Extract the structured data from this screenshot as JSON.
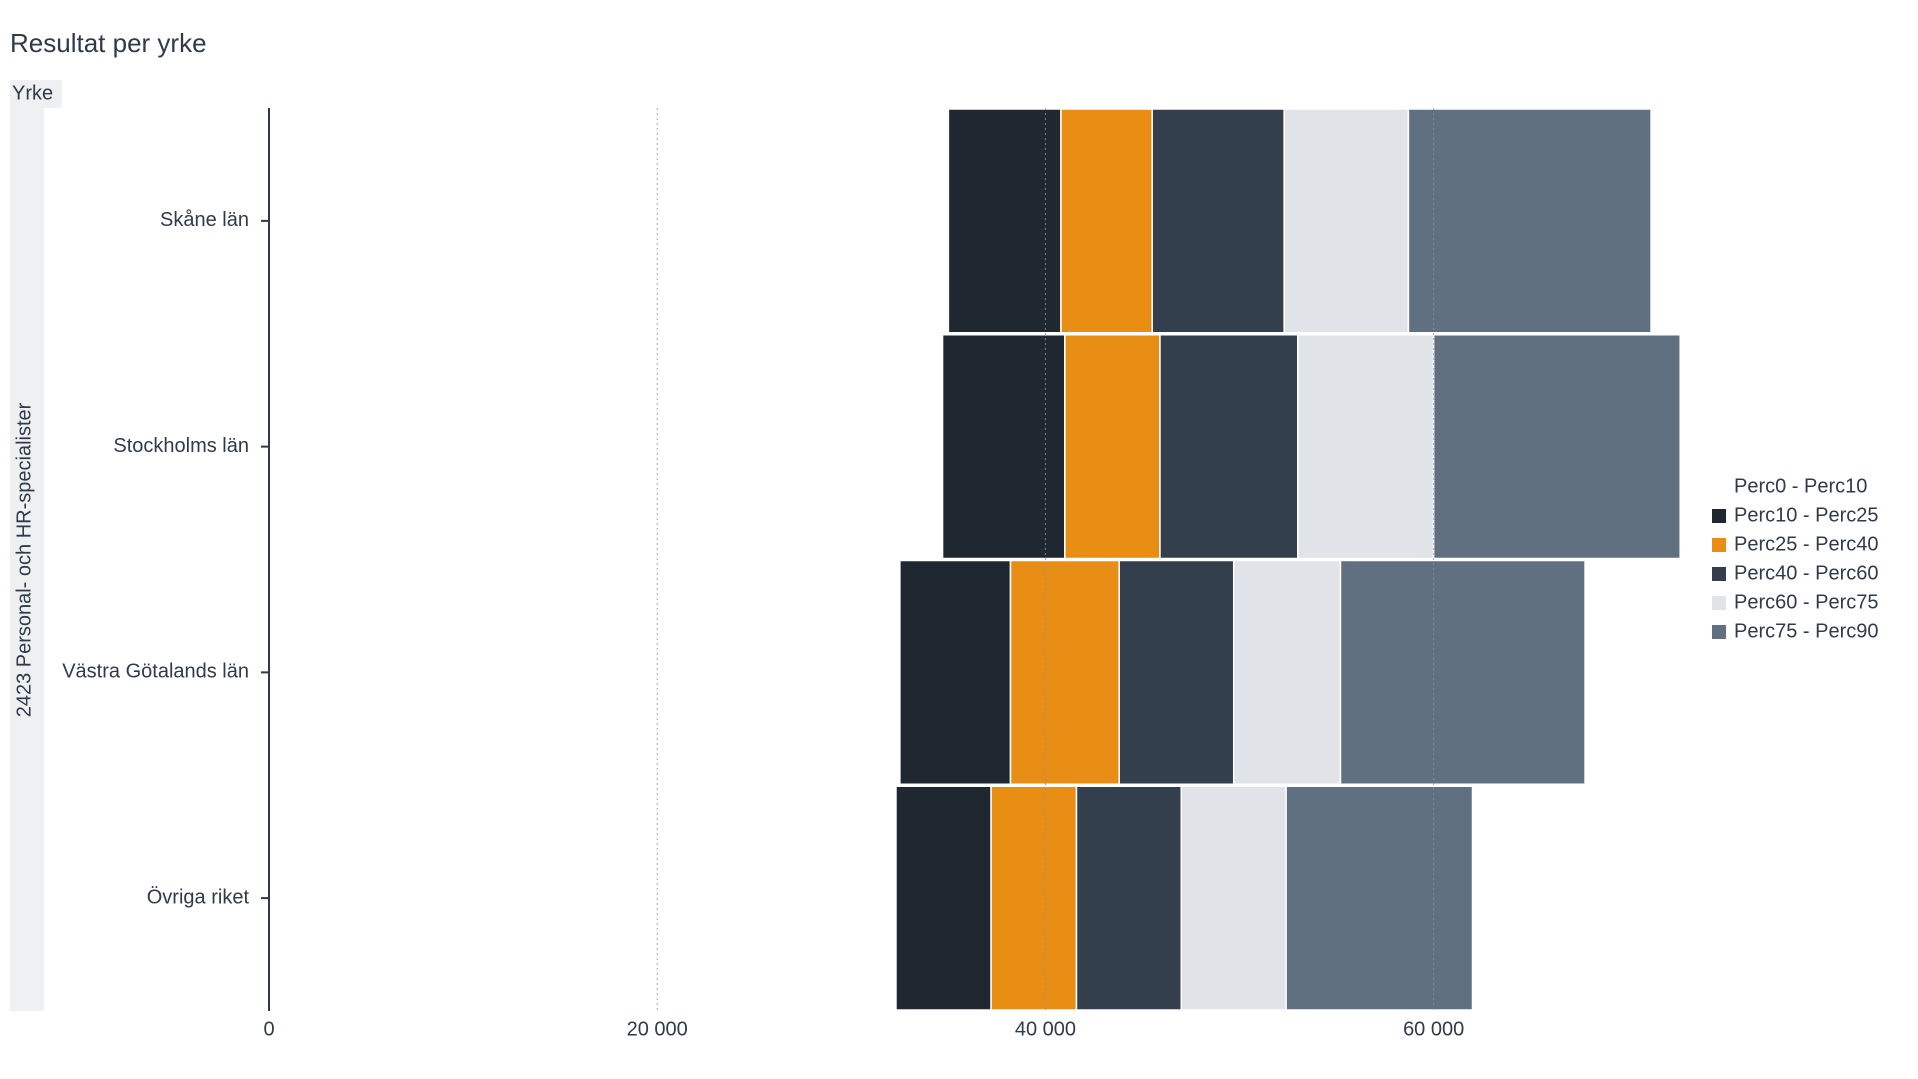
{
  "chart_data": {
    "type": "stacked_bar",
    "orientation": "horizontal",
    "title": "Resultat per yrke",
    "y_axis_title": "Yrke",
    "group_label": "2423 Personal- och HR-specialister",
    "categories": [
      "Skåne län",
      "Stockholms län",
      "Västra Götalands län",
      "Övriga riket"
    ],
    "series": [
      {
        "name": "Perc0 - Perc10",
        "color": "transparent",
        "values": [
          35000,
          34700,
          32500,
          32300
        ]
      },
      {
        "name": "Perc10 - Perc25",
        "color": "#1f2730",
        "values": [
          5800,
          6300,
          5700,
          4900
        ]
      },
      {
        "name": "Perc25 - Perc40",
        "color": "#e88e14",
        "values": [
          4700,
          4900,
          5600,
          4400
        ]
      },
      {
        "name": "Perc40 - Perc60",
        "color": "#333f4d",
        "values": [
          6800,
          7100,
          5900,
          5400
        ]
      },
      {
        "name": "Perc60 - Perc75",
        "color": "#e0e3e8",
        "values": [
          6400,
          7000,
          5500,
          5400
        ]
      },
      {
        "name": "Perc75 - Perc90",
        "color": "#617080",
        "values": [
          12500,
          12700,
          12600,
          9600
        ]
      }
    ],
    "xlim": [
      0,
      73000
    ],
    "xticks": [
      0,
      {
        "value": 20000,
        "label": "20 000"
      },
      {
        "value": 40000,
        "label": "40 000"
      },
      {
        "value": 60000,
        "label": "60 000"
      }
    ],
    "grid": true,
    "legend": "right"
  }
}
